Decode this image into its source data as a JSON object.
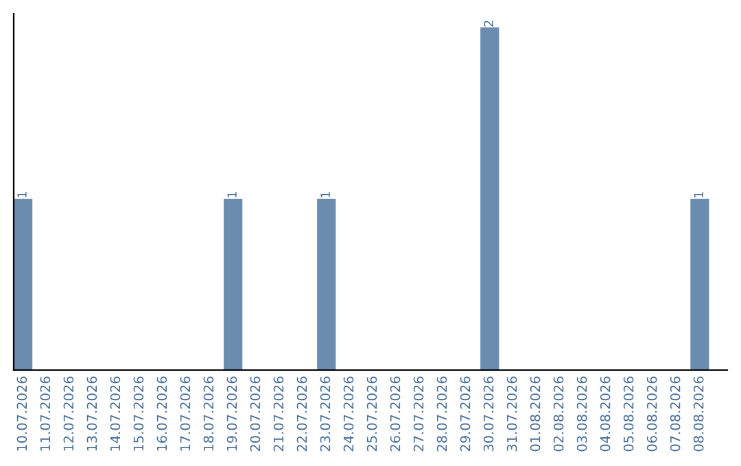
{
  "chart_data": {
    "type": "bar",
    "categories": [
      "10.07.2026",
      "11.07.2026",
      "12.07.2026",
      "13.07.2026",
      "14.07.2026",
      "15.07.2026",
      "16.07.2026",
      "17.07.2026",
      "18.07.2026",
      "19.07.2026",
      "20.07.2026",
      "21.07.2026",
      "22.07.2026",
      "23.07.2026",
      "24.07.2026",
      "25.07.2026",
      "26.07.2026",
      "27.07.2026",
      "28.07.2026",
      "29.07.2026",
      "30.07.2026",
      "31.07.2026",
      "01.08.2026",
      "02.08.2026",
      "03.08.2026",
      "04.08.2026",
      "05.08.2026",
      "06.08.2026",
      "07.08.2026",
      "08.08.2026"
    ],
    "values": [
      1,
      0,
      0,
      0,
      0,
      0,
      0,
      0,
      0,
      1,
      0,
      0,
      0,
      1,
      0,
      0,
      0,
      0,
      0,
      0,
      2,
      0,
      0,
      0,
      0,
      0,
      0,
      0,
      0,
      1
    ],
    "value_labels": [
      "1",
      null,
      null,
      null,
      null,
      null,
      null,
      null,
      null,
      "1",
      null,
      null,
      null,
      "1",
      null,
      null,
      null,
      null,
      null,
      null,
      "2",
      null,
      null,
      null,
      null,
      null,
      null,
      null,
      null,
      "1"
    ],
    "color": "#6a8caf",
    "ylim": [
      0,
      2.08
    ],
    "tick_labels": "x",
    "grid": false,
    "legend": false
  }
}
